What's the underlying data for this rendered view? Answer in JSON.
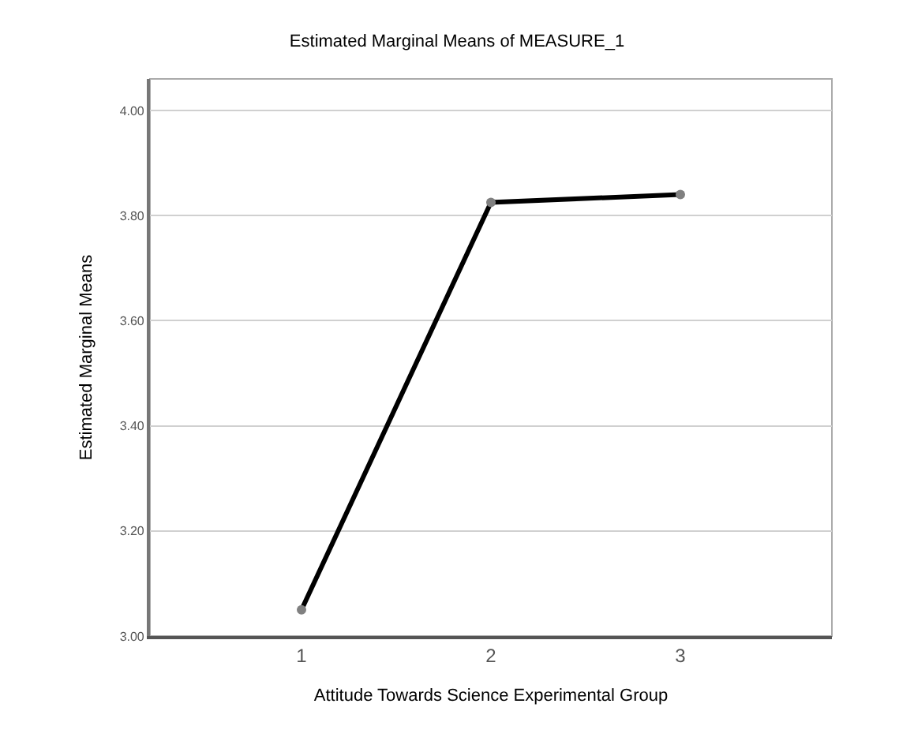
{
  "chart_data": {
    "type": "line",
    "title": "Estimated Marginal Means of MEASURE_1",
    "xlabel": "Attitude Towards Science Experimental Group",
    "ylabel": "Estimated Marginal Means",
    "categories": [
      "1",
      "2",
      "3"
    ],
    "series": [
      {
        "color": "#000000",
        "values": [
          3.05,
          3.825,
          3.84
        ]
      }
    ],
    "ylim": [
      3.0,
      4.06
    ],
    "yticks": [
      {
        "value": 3.0,
        "label": "3.00"
      },
      {
        "value": 3.2,
        "label": "3.20"
      },
      {
        "value": 3.4,
        "label": "3.40"
      },
      {
        "value": 3.6,
        "label": "3.60"
      },
      {
        "value": 3.8,
        "label": "3.80"
      },
      {
        "value": 4.0,
        "label": "4.00"
      }
    ],
    "grid": "y",
    "marker": "circle",
    "line_style": "solid"
  }
}
